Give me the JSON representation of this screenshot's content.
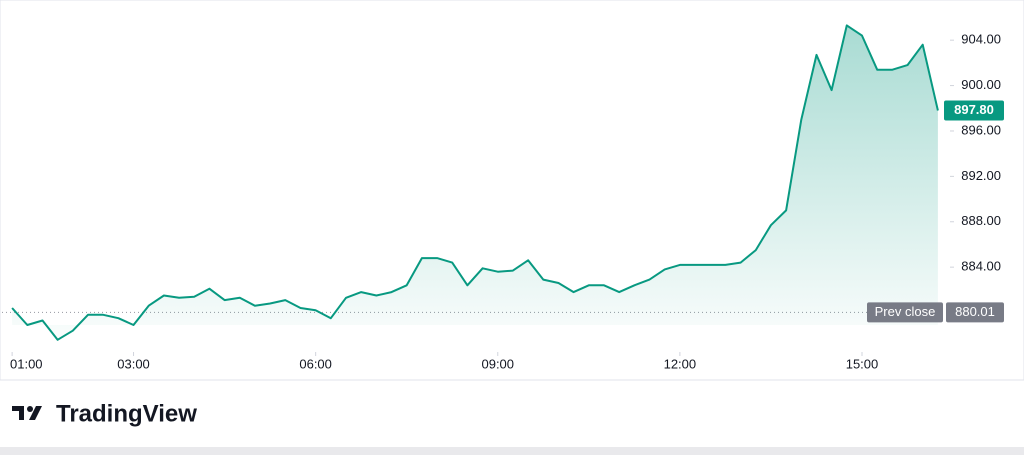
{
  "chart_data": {
    "type": "area",
    "x": [
      "01:00",
      "01:15",
      "01:30",
      "01:45",
      "02:00",
      "02:15",
      "02:30",
      "02:45",
      "03:00",
      "03:15",
      "03:30",
      "03:45",
      "04:00",
      "04:15",
      "04:30",
      "04:45",
      "05:00",
      "05:15",
      "05:30",
      "05:45",
      "06:00",
      "06:15",
      "06:30",
      "06:45",
      "07:00",
      "07:15",
      "07:30",
      "07:45",
      "08:00",
      "08:15",
      "08:30",
      "08:45",
      "09:00",
      "09:15",
      "09:30",
      "09:45",
      "10:00",
      "10:15",
      "10:30",
      "10:45",
      "11:00",
      "11:15",
      "11:30",
      "11:45",
      "12:00",
      "12:15",
      "12:30",
      "12:45",
      "13:00",
      "13:15",
      "13:30",
      "13:45",
      "14:00",
      "14:15",
      "14:30",
      "14:45",
      "15:00",
      "15:15",
      "15:30",
      "15:45",
      "16:00",
      "16:15"
    ],
    "values": [
      880.4,
      878.9,
      879.3,
      877.6,
      878.4,
      879.8,
      879.8,
      879.5,
      878.9,
      880.6,
      881.5,
      881.3,
      881.4,
      882.1,
      881.1,
      881.3,
      880.6,
      880.8,
      881.1,
      880.4,
      880.2,
      879.5,
      881.3,
      881.8,
      881.5,
      881.8,
      882.4,
      884.8,
      884.8,
      884.4,
      882.4,
      883.9,
      883.6,
      883.7,
      884.6,
      882.9,
      882.6,
      881.8,
      882.4,
      882.4,
      881.8,
      882.4,
      882.9,
      883.8,
      884.2,
      884.2,
      884.2,
      884.2,
      884.4,
      885.5,
      887.7,
      889.0,
      897.0,
      902.7,
      899.6,
      905.3,
      904.4,
      901.4,
      901.4,
      901.8,
      903.6,
      897.8
    ],
    "color": "#089981",
    "xlim": [
      "00:50",
      "16:25"
    ],
    "xticks": [
      "01:00",
      "03:00",
      "06:00",
      "09:00",
      "12:00",
      "15:00"
    ],
    "ylim": [
      876.7,
      907.1
    ],
    "yticks": [
      {
        "value": 884,
        "label": "884.00"
      },
      {
        "value": 888,
        "label": "888.00"
      },
      {
        "value": 892,
        "label": "892.00"
      },
      {
        "value": 896,
        "label": "896.00"
      },
      {
        "value": 900,
        "label": "900.00"
      },
      {
        "value": 904,
        "label": "904.00"
      }
    ],
    "last_price": {
      "value": 897.8,
      "label": "897.80"
    },
    "prev_close": {
      "name": "Prev close",
      "value": 880.01,
      "label": "880.01"
    },
    "brand": "TradingView"
  }
}
